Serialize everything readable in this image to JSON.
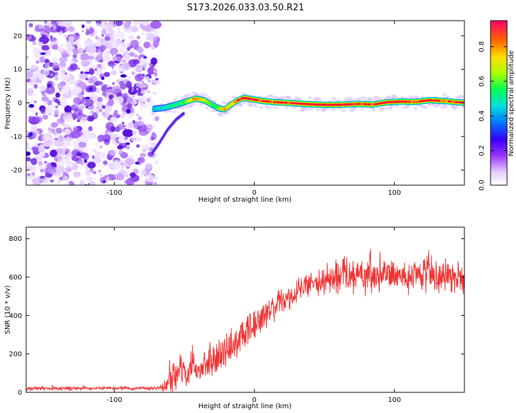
{
  "title": "S173.2026.033.03.50.R21",
  "chart_data": [
    {
      "type": "heatmap",
      "xlabel": "Height of straight line (km)",
      "ylabel": "Frequency (Hz)",
      "xlim": [
        -163,
        150
      ],
      "ylim": [
        -24.5,
        24.5
      ],
      "xticks": [
        "-100",
        "0",
        "100"
      ],
      "yticks": [
        "-20",
        "-10",
        "0",
        "10",
        "20"
      ],
      "colorbar_label": "Normalized spectral amplitude",
      "colorbar_ticks": [
        "0.0",
        "0.2",
        "0.4",
        "0.6",
        "0.8"
      ],
      "colorbar_range": [
        0,
        0.95
      ],
      "noise_region_x": [
        -163,
        -71
      ],
      "ridge": {
        "x": [
          -72,
          -65,
          -58,
          -50,
          -42,
          -36,
          -30,
          -25,
          -21,
          -17,
          -13,
          -8,
          -3,
          5,
          15,
          25,
          35,
          45,
          55,
          65,
          75,
          85,
          95,
          105,
          115,
          125,
          135,
          145,
          150
        ],
        "y": [
          -1.8,
          -1.5,
          -0.8,
          0.2,
          1.3,
          0.8,
          -0.6,
          -1.7,
          -1.9,
          -0.6,
          0.5,
          1.5,
          1.2,
          0.6,
          0.2,
          0.0,
          -0.3,
          -0.5,
          -0.6,
          -0.5,
          -0.3,
          -0.5,
          0.2,
          0.4,
          0.3,
          0.8,
          0.6,
          0.2,
          0.1
        ],
        "amplitude": [
          0.45,
          0.5,
          0.55,
          0.6,
          0.9,
          0.75,
          0.6,
          0.65,
          0.9,
          0.7,
          0.9,
          0.95,
          0.92,
          0.9,
          0.88,
          0.9,
          0.9,
          0.92,
          0.95,
          0.92,
          0.9,
          0.88,
          0.92,
          0.9,
          0.88,
          0.9,
          0.85,
          0.9,
          0.85
        ]
      },
      "branch": {
        "x": [
          -73,
          -68,
          -62,
          -56,
          -50
        ],
        "y": [
          -15,
          -12,
          -8,
          -5,
          -3
        ]
      }
    },
    {
      "type": "line",
      "xlabel": "Height of straight line (km)",
      "ylabel": "SNR (10 * v/v)",
      "xlim": [
        -163,
        150
      ],
      "ylim": [
        0,
        860
      ],
      "xticks": [
        "-100",
        "0",
        "100"
      ],
      "yticks": [
        "0",
        "200",
        "400",
        "600",
        "800"
      ],
      "color": "#ee3333",
      "envelope": {
        "x": [
          -163,
          -70,
          -63,
          -60,
          -55,
          -50,
          -45,
          -40,
          -35,
          -30,
          -25,
          -20,
          -15,
          -10,
          -5,
          0,
          5,
          10,
          15,
          20,
          25,
          30,
          35,
          40,
          50,
          60,
          70,
          80,
          90,
          100,
          110,
          120,
          130,
          140,
          150
        ],
        "mean": [
          20,
          22,
          30,
          70,
          110,
          100,
          120,
          110,
          140,
          160,
          190,
          220,
          250,
          280,
          320,
          350,
          380,
          420,
          450,
          470,
          500,
          520,
          540,
          560,
          580,
          600,
          610,
          615,
          620,
          615,
          610,
          615,
          610,
          605,
          600
        ],
        "spread": [
          10,
          10,
          30,
          70,
          90,
          70,
          80,
          70,
          80,
          80,
          90,
          90,
          90,
          90,
          90,
          80,
          80,
          70,
          70,
          70,
          70,
          70,
          70,
          70,
          80,
          90,
          100,
          100,
          100,
          90,
          90,
          90,
          90,
          90,
          90
        ]
      }
    }
  ]
}
